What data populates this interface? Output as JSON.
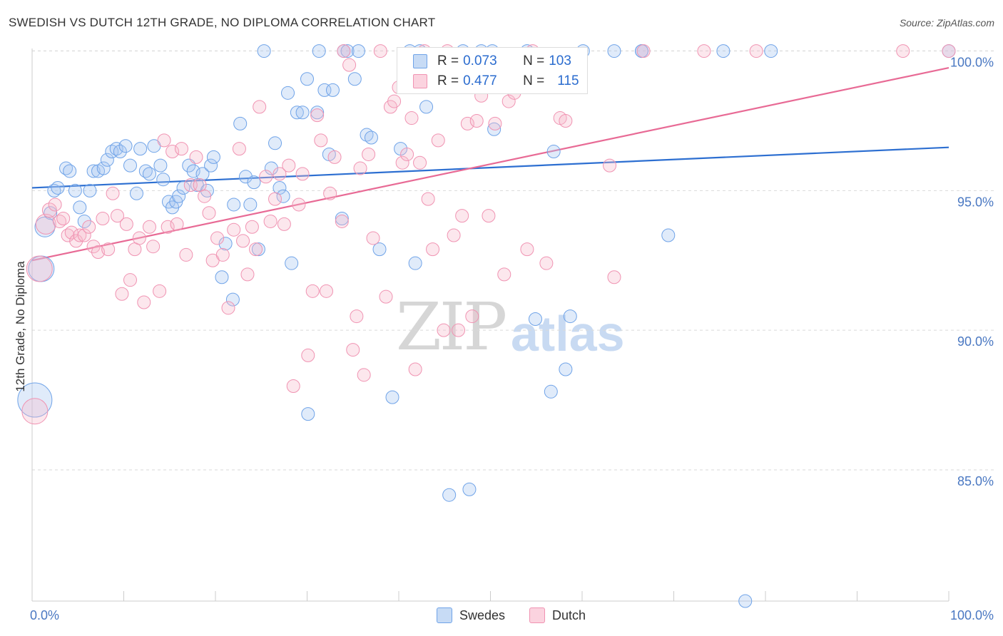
{
  "title": "SWEDISH VS DUTCH 12TH GRADE, NO DIPLOMA CORRELATION CHART",
  "source": "Source: ZipAtlas.com",
  "watermark": {
    "part1": "ZIP",
    "part2": "atlas"
  },
  "legend_stats": [
    {
      "r_label": "R = ",
      "r_value": "0.073",
      "n_label": "N = ",
      "n_value": "103",
      "color": "#a9c8f0"
    },
    {
      "r_label": "R = ",
      "r_value": "0.477",
      "n_label": "N = ",
      "n_value": "115",
      "color": "#f7b9cc"
    }
  ],
  "bottom_legend": [
    "Swedes",
    "Dutch"
  ],
  "chart_data": {
    "type": "scatter",
    "title": "SWEDISH VS DUTCH 12TH GRADE, NO DIPLOMA CORRELATION CHART",
    "ylabel": "12th Grade, No Diploma",
    "xlabel": "",
    "xlim": [
      0,
      100
    ],
    "ylim": [
      80.3,
      100.5
    ],
    "x_tick_labels": [
      "0.0%",
      "100.0%"
    ],
    "y_ticks": [
      85,
      90,
      95,
      100
    ],
    "y_tick_labels": [
      "85.0%",
      "90.0%",
      "95.0%",
      "100.0%"
    ],
    "grid": true,
    "colors": {
      "Swedes": "#6fa3e8",
      "Dutch": "#f093b2",
      "Swedes_line": "#2d6fd1",
      "Dutch_line": "#e86a95"
    },
    "series": [
      {
        "name": "Swedes",
        "trend": {
          "x": [
            0,
            100
          ],
          "y": [
            95.1,
            96.55
          ]
        },
        "points": [
          [
            0.3,
            87.5,
            24
          ],
          [
            1.0,
            92.2,
            18
          ],
          [
            1.4,
            93.7,
            14
          ],
          [
            2.0,
            94.2,
            9
          ],
          [
            2.4,
            95.0,
            9
          ],
          [
            2.8,
            95.1,
            9
          ],
          [
            3.7,
            95.8,
            9
          ],
          [
            4.1,
            95.7,
            9
          ],
          [
            4.7,
            95.0,
            9
          ],
          [
            5.2,
            94.4,
            9
          ],
          [
            5.7,
            93.9,
            9
          ],
          [
            6.3,
            95.0,
            9
          ],
          [
            6.7,
            95.7,
            9
          ],
          [
            7.2,
            95.7,
            9
          ],
          [
            7.8,
            95.8,
            9
          ],
          [
            8.2,
            96.1,
            9
          ],
          [
            8.7,
            96.4,
            9
          ],
          [
            9.2,
            96.5,
            9
          ],
          [
            9.6,
            96.4,
            9
          ],
          [
            10.2,
            96.6,
            9
          ],
          [
            10.7,
            95.9,
            9
          ],
          [
            11.4,
            94.9,
            9
          ],
          [
            11.8,
            96.5,
            9
          ],
          [
            12.4,
            95.7,
            9
          ],
          [
            12.8,
            95.6,
            9
          ],
          [
            13.3,
            96.6,
            9
          ],
          [
            14.0,
            95.9,
            9
          ],
          [
            14.3,
            95.4,
            9
          ],
          [
            14.9,
            94.6,
            9
          ],
          [
            15.3,
            94.4,
            9
          ],
          [
            15.7,
            94.6,
            9
          ],
          [
            16.0,
            94.8,
            9
          ],
          [
            16.5,
            95.1,
            9
          ],
          [
            17.1,
            95.9,
            9
          ],
          [
            17.6,
            95.7,
            9
          ],
          [
            18.0,
            95.2,
            9
          ],
          [
            18.6,
            95.6,
            9
          ],
          [
            19.1,
            95.0,
            9
          ],
          [
            19.5,
            95.9,
            9
          ],
          [
            19.8,
            96.2,
            9
          ],
          [
            20.7,
            91.9,
            9
          ],
          [
            21.1,
            93.1,
            9
          ],
          [
            21.9,
            91.1,
            9
          ],
          [
            22.0,
            94.5,
            9
          ],
          [
            22.7,
            97.4,
            9
          ],
          [
            23.3,
            95.5,
            9
          ],
          [
            23.8,
            94.5,
            9
          ],
          [
            24.2,
            95.3,
            9
          ],
          [
            24.7,
            92.9,
            9
          ],
          [
            25.3,
            100.0,
            9
          ],
          [
            26.1,
            95.8,
            9
          ],
          [
            26.5,
            96.7,
            9
          ],
          [
            27.0,
            95.1,
            9
          ],
          [
            27.4,
            94.8,
            9
          ],
          [
            27.9,
            98.5,
            9
          ],
          [
            28.3,
            92.4,
            9
          ],
          [
            28.9,
            97.8,
            9
          ],
          [
            29.5,
            97.8,
            9
          ],
          [
            30.0,
            99.0,
            9
          ],
          [
            30.1,
            87.0,
            9
          ],
          [
            31.1,
            97.8,
            9
          ],
          [
            31.3,
            100.0,
            9
          ],
          [
            31.9,
            98.6,
            9
          ],
          [
            32.4,
            96.3,
            9
          ],
          [
            32.8,
            98.6,
            9
          ],
          [
            33.8,
            94.0,
            9
          ],
          [
            34.0,
            100.0,
            9
          ],
          [
            34.4,
            100.0,
            9
          ],
          [
            35.2,
            99.0,
            9
          ],
          [
            35.6,
            100.0,
            9
          ],
          [
            36.5,
            97.0,
            9
          ],
          [
            37.0,
            96.9,
            9
          ],
          [
            37.9,
            92.9,
            9
          ],
          [
            39.3,
            87.6,
            9
          ],
          [
            40.2,
            96.5,
            9
          ],
          [
            41.2,
            100.0,
            9
          ],
          [
            41.8,
            92.4,
            9
          ],
          [
            42.3,
            100.0,
            9
          ],
          [
            43.0,
            98.0,
            9
          ],
          [
            45.5,
            84.1,
            9
          ],
          [
            47.0,
            100.0,
            9
          ],
          [
            47.7,
            84.3,
            9
          ],
          [
            49.0,
            100.0,
            9
          ],
          [
            50.2,
            100.0,
            9
          ],
          [
            50.4,
            97.2,
            9
          ],
          [
            54.0,
            100.0,
            9
          ],
          [
            54.9,
            90.4,
            9
          ],
          [
            56.6,
            87.8,
            9
          ],
          [
            56.9,
            96.4,
            9
          ],
          [
            58.2,
            88.6,
            9
          ],
          [
            58.7,
            90.5,
            9
          ],
          [
            60.1,
            100.0,
            9
          ],
          [
            63.5,
            100.0,
            9
          ],
          [
            66.5,
            100.0,
            9
          ],
          [
            66.5,
            100.0,
            9
          ],
          [
            69.4,
            93.4,
            9
          ],
          [
            75.4,
            100.0,
            9
          ],
          [
            77.8,
            80.3,
            9
          ],
          [
            80.6,
            100.0,
            9
          ],
          [
            100.0,
            100.0,
            9
          ]
        ]
      },
      {
        "name": "Dutch",
        "trend": {
          "x": [
            0,
            100
          ],
          "y": [
            92.5,
            99.4
          ]
        },
        "points": [
          [
            0.3,
            87.1,
            18
          ],
          [
            0.8,
            92.2,
            18
          ],
          [
            1.5,
            93.8,
            14
          ],
          [
            1.9,
            94.3,
            10
          ],
          [
            2.5,
            94.5,
            9
          ],
          [
            3.0,
            93.9,
            9
          ],
          [
            3.4,
            94.0,
            9
          ],
          [
            3.9,
            93.4,
            9
          ],
          [
            4.3,
            93.5,
            9
          ],
          [
            4.8,
            93.2,
            9
          ],
          [
            5.2,
            93.4,
            9
          ],
          [
            5.7,
            93.4,
            9
          ],
          [
            6.2,
            93.7,
            9
          ],
          [
            6.7,
            93.0,
            9
          ],
          [
            7.2,
            92.8,
            9
          ],
          [
            7.7,
            94.0,
            9
          ],
          [
            8.3,
            92.9,
            9
          ],
          [
            8.8,
            94.9,
            9
          ],
          [
            9.3,
            94.1,
            9
          ],
          [
            9.8,
            91.3,
            9
          ],
          [
            10.3,
            93.8,
            9
          ],
          [
            10.7,
            91.8,
            9
          ],
          [
            11.2,
            92.9,
            9
          ],
          [
            11.7,
            93.3,
            9
          ],
          [
            12.2,
            91.0,
            9
          ],
          [
            12.8,
            93.7,
            9
          ],
          [
            13.2,
            93.0,
            9
          ],
          [
            13.9,
            91.4,
            9
          ],
          [
            14.4,
            96.8,
            9
          ],
          [
            14.8,
            93.7,
            9
          ],
          [
            15.3,
            96.4,
            9
          ],
          [
            15.8,
            93.8,
            9
          ],
          [
            16.3,
            96.5,
            9
          ],
          [
            16.8,
            92.7,
            9
          ],
          [
            17.3,
            95.2,
            9
          ],
          [
            17.9,
            96.2,
            9
          ],
          [
            18.3,
            95.2,
            9
          ],
          [
            18.8,
            94.8,
            9
          ],
          [
            19.3,
            94.2,
            9
          ],
          [
            19.7,
            92.5,
            9
          ],
          [
            20.2,
            93.3,
            9
          ],
          [
            20.8,
            92.7,
            9
          ],
          [
            21.4,
            90.8,
            9
          ],
          [
            22.0,
            93.6,
            9
          ],
          [
            22.6,
            96.5,
            9
          ],
          [
            23.0,
            93.2,
            9
          ],
          [
            23.5,
            92.0,
            9
          ],
          [
            24.0,
            93.7,
            9
          ],
          [
            24.4,
            92.9,
            9
          ],
          [
            24.8,
            98.0,
            9
          ],
          [
            25.5,
            95.5,
            9
          ],
          [
            26.0,
            93.9,
            9
          ],
          [
            26.5,
            94.7,
            9
          ],
          [
            27.0,
            95.6,
            9
          ],
          [
            27.5,
            93.8,
            9
          ],
          [
            28.0,
            95.9,
            9
          ],
          [
            28.5,
            88.0,
            9
          ],
          [
            29.1,
            94.5,
            9
          ],
          [
            29.5,
            95.6,
            9
          ],
          [
            30.1,
            89.1,
            9
          ],
          [
            30.6,
            91.4,
            9
          ],
          [
            31.1,
            97.7,
            9
          ],
          [
            31.5,
            96.8,
            9
          ],
          [
            32.1,
            91.4,
            9
          ],
          [
            32.5,
            94.9,
            9
          ],
          [
            33.0,
            96.2,
            9
          ],
          [
            33.8,
            93.9,
            9
          ],
          [
            34.0,
            100.0,
            9
          ],
          [
            34.6,
            99.5,
            9
          ],
          [
            35.0,
            89.3,
            9
          ],
          [
            35.4,
            90.5,
            9
          ],
          [
            35.8,
            95.8,
            9
          ],
          [
            36.2,
            88.4,
            9
          ],
          [
            36.7,
            96.3,
            9
          ],
          [
            37.2,
            93.3,
            9
          ],
          [
            38.0,
            100.0,
            9
          ],
          [
            38.6,
            91.2,
            9
          ],
          [
            39.1,
            98.0,
            9
          ],
          [
            39.5,
            98.2,
            9
          ],
          [
            40.0,
            98.7,
            9
          ],
          [
            40.4,
            96.0,
            9
          ],
          [
            40.9,
            96.3,
            9
          ],
          [
            41.4,
            97.6,
            9
          ],
          [
            41.8,
            88.6,
            9
          ],
          [
            42.3,
            96.0,
            9
          ],
          [
            42.8,
            100.0,
            9
          ],
          [
            43.2,
            94.7,
            9
          ],
          [
            43.7,
            92.9,
            9
          ],
          [
            44.3,
            96.8,
            9
          ],
          [
            44.9,
            90.0,
            9
          ],
          [
            45.3,
            100.0,
            9
          ],
          [
            46.0,
            93.4,
            9
          ],
          [
            46.5,
            90.0,
            9
          ],
          [
            46.9,
            94.1,
            9
          ],
          [
            47.5,
            97.4,
            9
          ],
          [
            48.0,
            90.5,
            9
          ],
          [
            48.5,
            97.5,
            9
          ],
          [
            49.0,
            98.4,
            9
          ],
          [
            49.8,
            94.1,
            9
          ],
          [
            50.5,
            97.4,
            9
          ],
          [
            51.5,
            92.0,
            9
          ],
          [
            52.0,
            98.2,
            9
          ],
          [
            52.6,
            98.5,
            9
          ],
          [
            54.0,
            92.9,
            9
          ],
          [
            54.6,
            100.0,
            9
          ],
          [
            56.1,
            92.4,
            9
          ],
          [
            57.6,
            97.6,
            9
          ],
          [
            58.2,
            97.5,
            9
          ],
          [
            63.0,
            95.9,
            9
          ],
          [
            63.5,
            91.9,
            9
          ],
          [
            66.7,
            100.0,
            9
          ],
          [
            73.3,
            100.0,
            9
          ],
          [
            79.0,
            100.0,
            9
          ],
          [
            95.0,
            100.0,
            9
          ],
          [
            100.0,
            100.0,
            9
          ]
        ]
      }
    ]
  }
}
